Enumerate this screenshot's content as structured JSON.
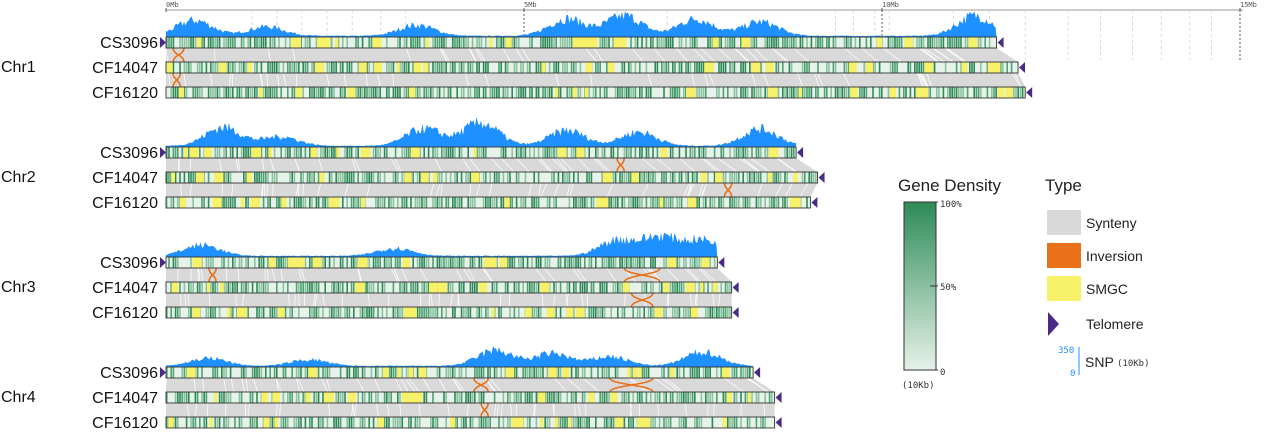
{
  "chart_data": {
    "type": "genome-synteny",
    "scale_ticks": [
      "0Mb",
      "5Mb",
      "10Mb",
      "15Mb"
    ],
    "chromosomes": [
      {
        "name": "Chr1",
        "tracks": [
          {
            "genome": "CS3096",
            "length_mb": 11.6,
            "snp_peaks": [
              [
                0.4,
                20
              ],
              [
                1.4,
                12
              ],
              [
                3.5,
                14
              ],
              [
                5.6,
                22
              ],
              [
                6.4,
                26
              ],
              [
                7.4,
                22
              ],
              [
                8.3,
                18
              ],
              [
                11.3,
                26
              ]
            ]
          },
          {
            "genome": "CF14047",
            "length_mb": 11.9
          },
          {
            "genome": "CF16120",
            "length_mb": 12.0
          }
        ],
        "inversions": [
          {
            "track_pair": [
              0,
              1
            ],
            "start_mb": 0.1,
            "end_mb": 0.25
          },
          {
            "track_pair": [
              1,
              2
            ],
            "start_mb": 0.1,
            "end_mb": 0.2
          }
        ]
      },
      {
        "name": "Chr2",
        "tracks": [
          {
            "genome": "CS3096",
            "length_mb": 8.8,
            "snp_peaks": [
              [
                0.8,
                24
              ],
              [
                1.6,
                12
              ],
              [
                3.6,
                22
              ],
              [
                4.4,
                30
              ],
              [
                5.6,
                20
              ],
              [
                6.6,
                18
              ],
              [
                8.3,
                22
              ]
            ]
          },
          {
            "genome": "CF14047",
            "length_mb": 9.1
          },
          {
            "genome": "CF16120",
            "length_mb": 9.0
          }
        ],
        "inversions": [
          {
            "track_pair": [
              0,
              1
            ],
            "start_mb": 6.3,
            "end_mb": 6.4
          },
          {
            "track_pair": [
              1,
              2
            ],
            "start_mb": 7.8,
            "end_mb": 7.9
          }
        ]
      },
      {
        "name": "Chr3",
        "tracks": [
          {
            "genome": "CS3096",
            "length_mb": 7.7,
            "snp_peaks": [
              [
                0.5,
                14
              ],
              [
                3.2,
                10
              ],
              [
                6.3,
                20
              ],
              [
                6.9,
                24
              ],
              [
                7.5,
                20
              ]
            ]
          },
          {
            "genome": "CF14047",
            "length_mb": 7.9
          },
          {
            "genome": "CF16120",
            "length_mb": 7.9
          }
        ],
        "inversions": [
          {
            "track_pair": [
              0,
              1
            ],
            "start_mb": 0.6,
            "end_mb": 0.7
          },
          {
            "track_pair": [
              0,
              1
            ],
            "start_mb": 6.4,
            "end_mb": 6.9
          },
          {
            "track_pair": [
              1,
              2
            ],
            "start_mb": 6.5,
            "end_mb": 6.8
          }
        ]
      },
      {
        "name": "Chr4",
        "tracks": [
          {
            "genome": "CS3096",
            "length_mb": 8.2,
            "snp_peaks": [
              [
                0.6,
                10
              ],
              [
                2.0,
                8
              ],
              [
                4.6,
                20
              ],
              [
                5.4,
                16
              ],
              [
                6.2,
                12
              ],
              [
                7.5,
                18
              ]
            ]
          },
          {
            "genome": "CF14047",
            "length_mb": 8.5
          },
          {
            "genome": "CF16120",
            "length_mb": 8.5
          }
        ],
        "inversions": [
          {
            "track_pair": [
              0,
              1
            ],
            "start_mb": 4.3,
            "end_mb": 4.5
          },
          {
            "track_pair": [
              0,
              1
            ],
            "start_mb": 6.2,
            "end_mb": 6.8
          },
          {
            "track_pair": [
              1,
              2
            ],
            "start_mb": 4.4,
            "end_mb": 4.5
          }
        ]
      }
    ],
    "gene_density_legend": {
      "title": "Gene Density",
      "ticks": [
        "100%",
        "50%",
        "0"
      ],
      "unit": "(10Kb)",
      "color_high": "#2e8b57",
      "color_low": "#e6f2ea"
    },
    "type_legend": {
      "title": "Type",
      "items": [
        {
          "label": "Synteny",
          "color": "#d9d9d9",
          "icon": "gray-box"
        },
        {
          "label": "Inversion",
          "color": "#e8711a",
          "icon": "orange-box"
        },
        {
          "label": "SMGC",
          "color": "#f7f16a",
          "icon": "yellow-box"
        },
        {
          "label": "Telomere",
          "color": "#4b2a86",
          "icon": "purple-triangle"
        }
      ],
      "snp": {
        "label": "SNP",
        "unit": "(10Kb)",
        "max": "350",
        "min": "0",
        "color": "#1e90ff"
      }
    }
  }
}
